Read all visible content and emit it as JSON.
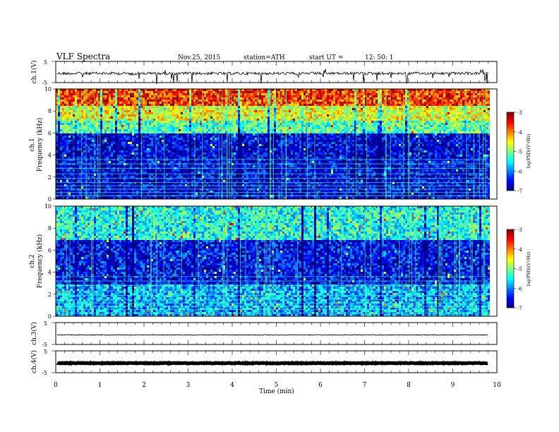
{
  "header": {
    "title": "VLF  Spectra",
    "date": "Nov.25, 2015",
    "station": "station=ATH",
    "start_label": "start  UT  =",
    "start_time": "12: 50: 1"
  },
  "chart_data": [
    {
      "type": "line",
      "name": "ch1-waveform",
      "ylabel": "ch.1(V)",
      "ylim": [
        -5,
        5
      ],
      "yticks": [
        "5",
        "-5"
      ],
      "xlim": [
        0,
        10
      ],
      "style": "noisy waveform with frequent spikes"
    },
    {
      "type": "heatmap",
      "name": "ch1-spectrogram",
      "ylabel_line1": "ch.1",
      "ylabel_line2": "Frequency  (kHz)",
      "ylim": [
        0,
        10
      ],
      "yticks": [
        "0",
        "2",
        "4",
        "6",
        "8",
        "10"
      ],
      "xlim": [
        0,
        10
      ],
      "colorbar": {
        "range": [
          -7,
          -3
        ],
        "ticks": [
          "-3",
          "-4",
          "-5",
          "-6",
          "-7"
        ],
        "label": "log(PSD)(V²/Hz)"
      },
      "bands": [
        {
          "from": 0,
          "to": 6,
          "level": -6.6
        },
        {
          "from": 6,
          "to": 7.3,
          "level": -5.2
        },
        {
          "from": 7.3,
          "to": 8.6,
          "level": -4.6
        },
        {
          "from": 8.6,
          "to": 10,
          "level": -3.7
        }
      ]
    },
    {
      "type": "heatmap",
      "name": "ch2-spectrogram",
      "ylabel_line1": "ch.2",
      "ylabel_line2": "Frequency  (kHz)",
      "ylim": [
        0,
        10
      ],
      "yticks": [
        "0",
        "2",
        "4",
        "6",
        "8",
        "10"
      ],
      "xlim": [
        0,
        10
      ],
      "colorbar": {
        "range": [
          -7,
          -3
        ],
        "ticks": [
          "-3",
          "-4",
          "-5",
          "-6",
          "-7"
        ],
        "label": "log(PSD)(V²/Hz)"
      },
      "bands": [
        {
          "from": 0,
          "to": 3,
          "level": -5.8
        },
        {
          "from": 3,
          "to": 7,
          "level": -6.5
        },
        {
          "from": 7,
          "to": 10,
          "level": -5.4
        }
      ]
    },
    {
      "type": "line",
      "name": "ch3-waveform",
      "ylabel": "ch.3(V)",
      "ylim": [
        -5,
        5
      ],
      "yticks": [
        "5",
        "-5"
      ],
      "xlim": [
        0,
        10
      ],
      "style": "flat near zero"
    },
    {
      "type": "line",
      "name": "ch4-waveform",
      "ylabel": "ch.4(V)",
      "ylim": [
        -5,
        5
      ],
      "yticks": [
        "5",
        "-5"
      ],
      "xlim": [
        0,
        10
      ],
      "style": "thick flat band near zero"
    }
  ],
  "x_axis": {
    "label": "Time  (min)",
    "ticks": [
      "0",
      "1",
      "2",
      "3",
      "4",
      "5",
      "6",
      "7",
      "8",
      "9",
      "10"
    ]
  },
  "data_end_min": 9.8
}
